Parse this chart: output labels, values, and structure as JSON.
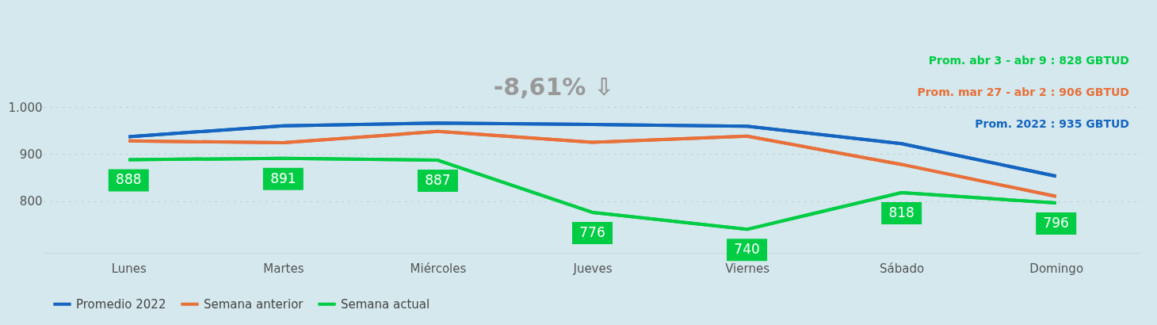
{
  "chart_data": {
    "type": "line",
    "title": "-8,61% ⇩",
    "categories": [
      "Lunes",
      "Martes",
      "Miércoles",
      "Jueves",
      "Viernes",
      "Sábado",
      "Domingo"
    ],
    "series": [
      {
        "name": "Promedio 2022",
        "color": "#1565c0",
        "values": [
          937,
          960,
          966,
          963,
          959,
          922,
          853
        ]
      },
      {
        "name": "Semana anterior",
        "color": "#e8703a",
        "values": [
          928,
          924,
          948,
          925,
          938,
          878,
          810
        ]
      },
      {
        "name": "Semana actual",
        "color": "#00cc44",
        "values": [
          888,
          891,
          887,
          776,
          740,
          818,
          796
        ],
        "value_labels": [
          "888",
          "891",
          "887",
          "776",
          "740",
          "818",
          "796"
        ]
      }
    ],
    "annotations": [
      "Prom. abr 3 - abr 9 : 828 GBTUD",
      "Prom. mar 27 - abr 2 : 906 GBTUD",
      "Prom. 2022 : 935 GBTUD"
    ],
    "ylim": [
      690,
      1000
    ],
    "yticks": [
      800,
      900,
      {
        "value": 1000,
        "label": "1.000"
      }
    ],
    "grid": "y",
    "legend": "bottom",
    "marker": "none",
    "line_style": "solid"
  }
}
